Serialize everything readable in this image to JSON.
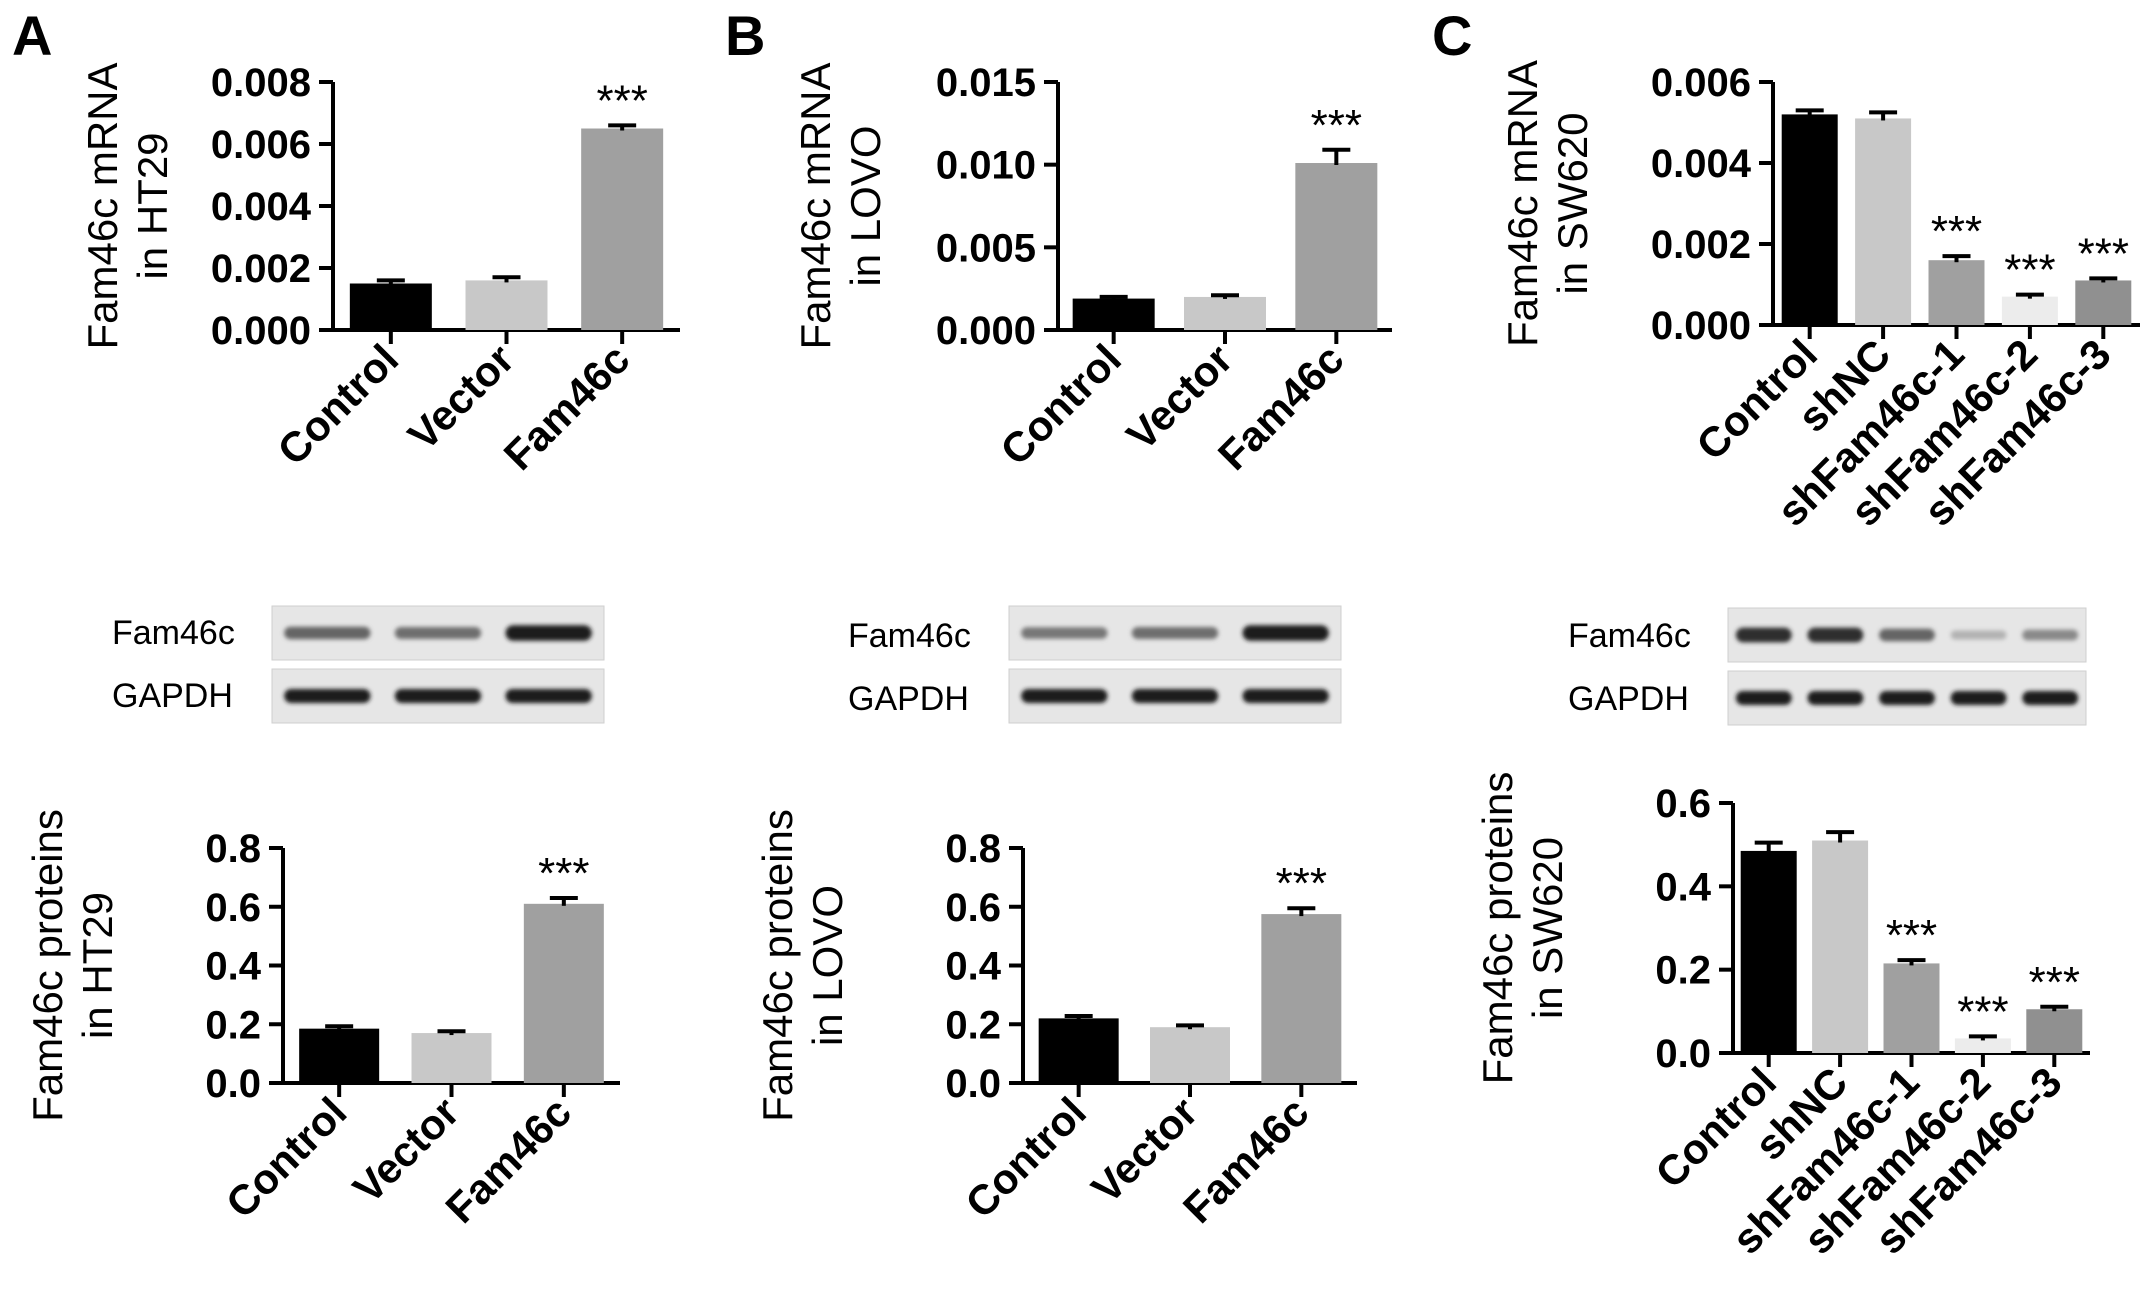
{
  "panels": [
    {
      "letter": "A"
    },
    {
      "letter": "B"
    },
    {
      "letter": "C"
    }
  ],
  "blot_labels": {
    "target": "Fam46c",
    "control": "GAPDH"
  },
  "chart_data": [
    {
      "id": "A-mrna",
      "type": "bar",
      "ylabel_lines": [
        "Fam46c mRNA",
        "in HT29"
      ],
      "categories": [
        "Control",
        "Vector",
        "Fam46c"
      ],
      "values": [
        0.0015,
        0.0016,
        0.0065
      ],
      "errors": [
        0.0001,
        0.0001,
        0.0001
      ],
      "significance": [
        "",
        "",
        "***"
      ],
      "colors": [
        "#000000",
        "#c8c8c8",
        "#a0a0a0"
      ],
      "ylim": [
        0,
        0.008
      ],
      "yticks": [
        0,
        0.002,
        0.004,
        0.006,
        0.008
      ],
      "ytick_labels": [
        "0.000",
        "0.002",
        "0.004",
        "0.006",
        "0.008"
      ]
    },
    {
      "id": "A-protein",
      "type": "bar",
      "ylabel_lines": [
        "Fam46c proteins",
        "in HT29"
      ],
      "categories": [
        "Control",
        "Vector",
        "Fam46c"
      ],
      "values": [
        0.185,
        0.17,
        0.61
      ],
      "errors": [
        0.008,
        0.006,
        0.02
      ],
      "significance": [
        "",
        "",
        "***"
      ],
      "colors": [
        "#000000",
        "#c8c8c8",
        "#a0a0a0"
      ],
      "ylim": [
        0,
        0.8
      ],
      "yticks": [
        0,
        0.2,
        0.4,
        0.6,
        0.8
      ],
      "ytick_labels": [
        "0.0",
        "0.2",
        "0.4",
        "0.6",
        "0.8"
      ]
    },
    {
      "id": "B-mrna",
      "type": "bar",
      "ylabel_lines": [
        "Fam46c mRNA",
        "in LOVO"
      ],
      "categories": [
        "Control",
        "Vector",
        "Fam46c"
      ],
      "values": [
        0.0019,
        0.002,
        0.0101
      ],
      "errors": [
        0.0001,
        0.0001,
        0.0008
      ],
      "significance": [
        "",
        "",
        "***"
      ],
      "colors": [
        "#000000",
        "#c8c8c8",
        "#a0a0a0"
      ],
      "ylim": [
        0,
        0.015
      ],
      "yticks": [
        0,
        0.005,
        0.01,
        0.015
      ],
      "ytick_labels": [
        "0.000",
        "0.005",
        "0.010",
        "0.015"
      ]
    },
    {
      "id": "B-protein",
      "type": "bar",
      "ylabel_lines": [
        "Fam46c proteins",
        "in LOVO"
      ],
      "categories": [
        "Control",
        "Vector",
        "Fam46c"
      ],
      "values": [
        0.22,
        0.19,
        0.575
      ],
      "errors": [
        0.008,
        0.006,
        0.02
      ],
      "significance": [
        "",
        "",
        "***"
      ],
      "colors": [
        "#000000",
        "#c8c8c8",
        "#a0a0a0"
      ],
      "ylim": [
        0,
        0.8
      ],
      "yticks": [
        0,
        0.2,
        0.4,
        0.6,
        0.8
      ],
      "ytick_labels": [
        "0.0",
        "0.2",
        "0.4",
        "0.6",
        "0.8"
      ]
    },
    {
      "id": "C-mrna",
      "type": "bar",
      "ylabel_lines": [
        "Fam46c mRNA",
        "in SW620"
      ],
      "categories": [
        "Control",
        "shNC",
        "shFam46c-1",
        "shFam46c-2",
        "shFam46c-3"
      ],
      "values": [
        0.0052,
        0.0051,
        0.0016,
        0.0007,
        0.0011
      ],
      "errors": [
        0.0001,
        0.00015,
        0.0001,
        5e-05,
        5e-05
      ],
      "significance": [
        "",
        "",
        "***",
        "***",
        "***"
      ],
      "colors": [
        "#000000",
        "#c8c8c8",
        "#a0a0a0",
        "#ececec",
        "#909090"
      ],
      "ylim": [
        0,
        0.006
      ],
      "yticks": [
        0,
        0.002,
        0.004,
        0.006
      ],
      "ytick_labels": [
        "0.000",
        "0.002",
        "0.004",
        "0.006"
      ]
    },
    {
      "id": "C-protein",
      "type": "bar",
      "ylabel_lines": [
        "Fam46c proteins",
        "in SW620"
      ],
      "categories": [
        "Control",
        "shNC",
        "shFam46c-1",
        "shFam46c-2",
        "shFam46c-3"
      ],
      "values": [
        0.485,
        0.51,
        0.215,
        0.035,
        0.105
      ],
      "errors": [
        0.02,
        0.02,
        0.008,
        0.005,
        0.006
      ],
      "significance": [
        "",
        "",
        "***",
        "***",
        "***"
      ],
      "colors": [
        "#000000",
        "#c8c8c8",
        "#a0a0a0",
        "#ececec",
        "#909090"
      ],
      "ylim": [
        0,
        0.6
      ],
      "yticks": [
        0,
        0.2,
        0.4,
        0.6
      ],
      "ytick_labels": [
        "0.0",
        "0.2",
        "0.4",
        "0.6"
      ]
    }
  ],
  "blots": [
    {
      "id": "A-blot",
      "target_intensity": [
        0.55,
        0.5,
        0.95
      ],
      "gapdh_intensity": [
        0.95,
        0.95,
        0.95
      ]
    },
    {
      "id": "B-blot",
      "target_intensity": [
        0.45,
        0.5,
        0.95
      ],
      "gapdh_intensity": [
        0.95,
        0.95,
        0.95
      ]
    },
    {
      "id": "C-blot",
      "target_intensity": [
        0.85,
        0.85,
        0.55,
        0.12,
        0.35
      ],
      "gapdh_intensity": [
        0.95,
        0.95,
        0.95,
        0.95,
        0.95
      ]
    }
  ]
}
